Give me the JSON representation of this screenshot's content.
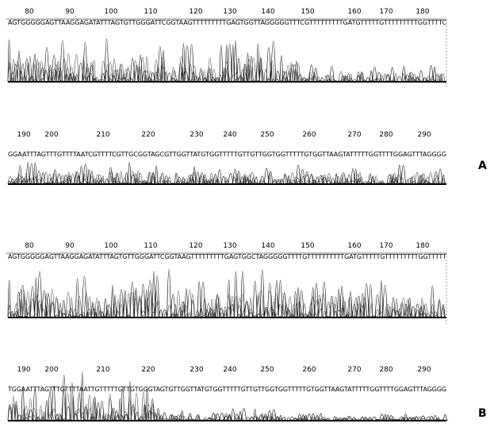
{
  "panels": [
    {
      "label": "A",
      "rows": [
        {
          "ticks": [
            80,
            90,
            100,
            110,
            120,
            130,
            140,
            150,
            160,
            170,
            180
          ],
          "sequence": "AGTGGGGGAGTTAAGGAGATATTTAGTGTTGGGATTCGGTAAGTTTTTTTTTGAGTGGTTAGGGGGTTTCGTTTTTTTTTGATGTTTTTGTTTTTTTTTGGTTTTC"
        },
        {
          "ticks": [
            190,
            200,
            210,
            220,
            230,
            240,
            250,
            260,
            270,
            280,
            290
          ],
          "sequence": "GGAATTTAGTTTGTTTTAATCGTTTTCGTTGCGGTAGCGTTGGTTATGTGGTTTTTGTTGTTGGTGGTTTTTGTGGTTAAGTATTTTTGGTTTTGGAGTTTAGGGG"
        }
      ]
    },
    {
      "label": "B",
      "rows": [
        {
          "ticks": [
            80,
            90,
            100,
            110,
            120,
            130,
            140,
            150,
            160,
            170,
            180
          ],
          "sequence": "AGTGGGGGAGTTAAGGAGATATTTAGTGTTGGGATTCGGTAAGTTTTTTTTTGAGTGGCTAGGGGGTTTTGTTTTTTTTTTGATGTTTTTGTTTTTTTTTGGTTTTT"
        },
        {
          "ticks": [
            190,
            200,
            210,
            220,
            230,
            240,
            250,
            260,
            270,
            280,
            290
          ],
          "sequence": "TGGAATTTAGTTTGTTTTAATTGTTTTTGTTGTGGGTAGTGTTGGTTATGTGGTTTTTGTTGTTGGTGGTTTTTGTGGTTAAGTATTTTTGGTTTTGGAGTTTAGGGG"
        }
      ]
    }
  ]
}
